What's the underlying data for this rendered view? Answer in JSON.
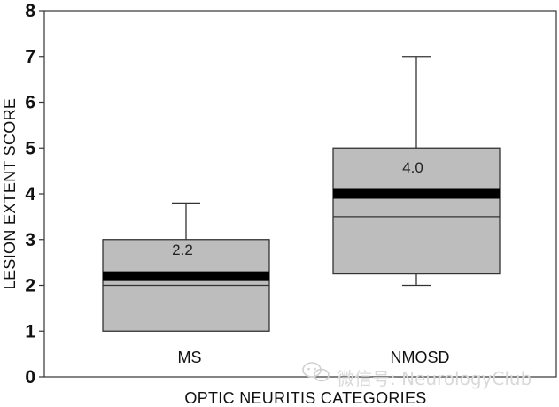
{
  "chart_data": {
    "type": "box",
    "xlabel": "OPTIC NEURITIS CATEGORIES",
    "ylabel": "LESION EXTENT SCORE",
    "ylim": [
      0,
      8
    ],
    "yticks": [
      "0",
      "1",
      "2",
      "3",
      "4",
      "5",
      "6",
      "7",
      "8"
    ],
    "categories": [
      "MS",
      "NMOSD"
    ],
    "boxes": [
      {
        "category": "MS",
        "whisker_low": 1.0,
        "q1": 1.0,
        "median_line": 2.0,
        "mean": 2.2,
        "q3": 3.0,
        "whisker_high": 3.8,
        "label": "2.2"
      },
      {
        "category": "NMOSD",
        "whisker_low": 2.0,
        "q1": 2.25,
        "median_line": 3.5,
        "mean": 4.0,
        "q3": 5.0,
        "whisker_high": 7.0,
        "label": "4.0"
      }
    ],
    "grid": false,
    "colors": {
      "box_fill": "#bdbdbd",
      "frame": "#333333",
      "thick_line": "#000000"
    }
  },
  "watermark": {
    "icon": "wechat-icon",
    "text": "微信号: NeurologyClub"
  }
}
